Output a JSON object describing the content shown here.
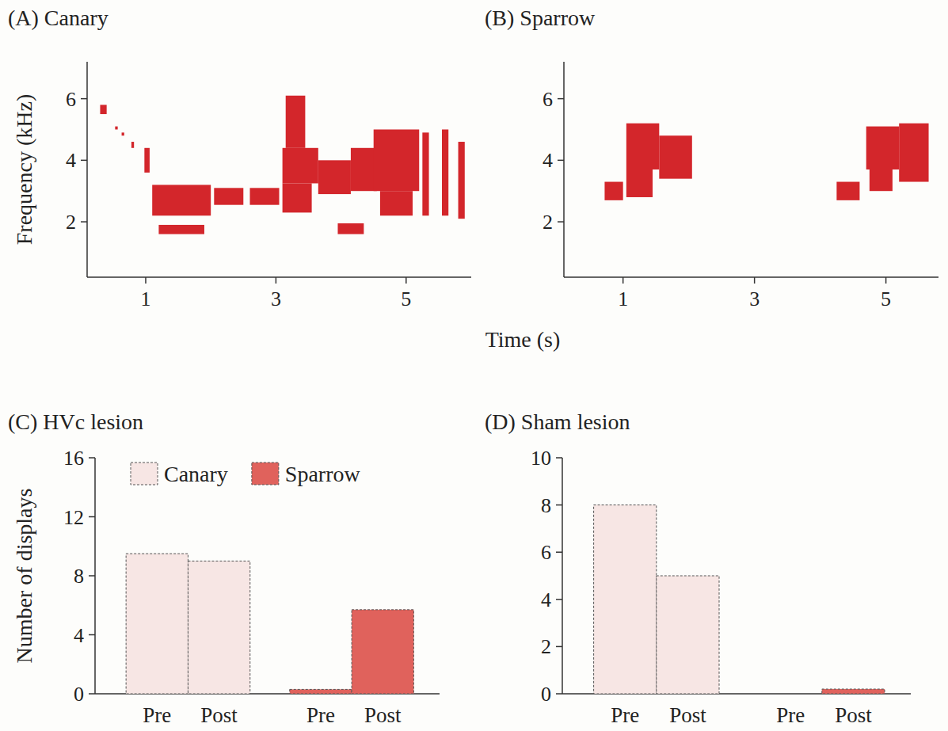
{
  "chart_data": [
    {
      "type": "spectrogram",
      "title": "(A) Canary",
      "x_label": "Time (s)",
      "y_label": "Frequency (kHz)",
      "xlim": [
        0.1,
        6
      ],
      "ylim": [
        0.2,
        7.2
      ],
      "xticks": [
        1,
        3,
        5
      ],
      "yticks": [
        2,
        4,
        6
      ],
      "color": "#d3262b",
      "segments": [
        {
          "t": [
            0.3,
            0.4
          ],
          "f": [
            5.5,
            5.8
          ]
        },
        {
          "t": [
            0.53,
            0.57
          ],
          "f": [
            5.0,
            5.1
          ]
        },
        {
          "t": [
            0.63,
            0.67
          ],
          "f": [
            4.8,
            4.9
          ]
        },
        {
          "t": [
            0.78,
            0.82
          ],
          "f": [
            4.4,
            4.6
          ]
        },
        {
          "t": [
            0.98,
            1.06
          ],
          "f": [
            3.6,
            4.4
          ]
        },
        {
          "t": [
            1.1,
            2.0
          ],
          "f": [
            2.2,
            3.2
          ]
        },
        {
          "t": [
            1.2,
            1.9
          ],
          "f": [
            1.6,
            1.9
          ]
        },
        {
          "t": [
            2.05,
            2.5
          ],
          "f": [
            2.55,
            3.1
          ]
        },
        {
          "t": [
            2.6,
            3.05
          ],
          "f": [
            2.55,
            3.1
          ]
        },
        {
          "t": [
            3.1,
            3.65
          ],
          "f": [
            3.25,
            4.4
          ]
        },
        {
          "t": [
            3.15,
            3.45
          ],
          "f": [
            4.4,
            6.1
          ]
        },
        {
          "t": [
            3.1,
            3.55
          ],
          "f": [
            2.3,
            3.25
          ]
        },
        {
          "t": [
            3.65,
            4.15
          ],
          "f": [
            2.9,
            4.0
          ]
        },
        {
          "t": [
            3.95,
            4.35
          ],
          "f": [
            1.6,
            1.95
          ]
        },
        {
          "t": [
            4.15,
            4.55
          ],
          "f": [
            3.0,
            4.4
          ]
        },
        {
          "t": [
            4.5,
            5.2
          ],
          "f": [
            3.0,
            5.0
          ]
        },
        {
          "t": [
            4.6,
            5.1
          ],
          "f": [
            2.2,
            3.0
          ]
        },
        {
          "t": [
            5.25,
            5.35
          ],
          "f": [
            2.2,
            4.9
          ]
        },
        {
          "t": [
            5.55,
            5.65
          ],
          "f": [
            2.2,
            5.0
          ]
        },
        {
          "t": [
            5.8,
            5.9
          ],
          "f": [
            2.1,
            4.6
          ]
        }
      ]
    },
    {
      "type": "spectrogram",
      "title": "(B) Sparrow",
      "xlim": [
        0.1,
        5.8
      ],
      "ylim": [
        0.2,
        7.2
      ],
      "xticks": [
        1,
        3,
        5
      ],
      "yticks": [
        2,
        4,
        6
      ],
      "color": "#d3262b",
      "segments": [
        {
          "t": [
            0.72,
            1.0
          ],
          "f": [
            2.7,
            3.3
          ]
        },
        {
          "t": [
            1.05,
            1.55
          ],
          "f": [
            3.7,
            5.2
          ]
        },
        {
          "t": [
            1.05,
            1.45
          ],
          "f": [
            2.8,
            3.7
          ]
        },
        {
          "t": [
            1.55,
            2.05
          ],
          "f": [
            3.4,
            4.8
          ]
        },
        {
          "t": [
            4.25,
            4.6
          ],
          "f": [
            2.7,
            3.3
          ]
        },
        {
          "t": [
            4.7,
            5.2
          ],
          "f": [
            3.7,
            5.1
          ]
        },
        {
          "t": [
            4.75,
            5.1
          ],
          "f": [
            3.0,
            3.7
          ]
        },
        {
          "t": [
            5.2,
            5.65
          ],
          "f": [
            3.3,
            5.2
          ]
        }
      ]
    },
    {
      "type": "bar",
      "title": "(C) HVc lesion",
      "y_label": "Number of displays",
      "categories": [
        "Pre",
        "Post",
        "Pre",
        "Post"
      ],
      "ylim": [
        0,
        16
      ],
      "yticks": [
        0,
        4,
        8,
        12,
        16
      ],
      "legend": "top",
      "series": [
        {
          "name": "Canary",
          "color": "#f7e6e4",
          "values": [
            9.5,
            9,
            null,
            null
          ]
        },
        {
          "name": "Sparrow",
          "color": "#e0625c",
          "values": [
            null,
            null,
            0.3,
            5.7
          ]
        }
      ]
    },
    {
      "type": "bar",
      "title": "(D) Sham lesion",
      "categories": [
        "Pre",
        "Post",
        "Pre",
        "Post"
      ],
      "ylim": [
        0,
        10
      ],
      "yticks": [
        0,
        2,
        4,
        6,
        8,
        10
      ],
      "series": [
        {
          "color": "#f7e6e4",
          "values": [
            8,
            5,
            null,
            null
          ]
        },
        {
          "color": "#e0625c",
          "values": [
            null,
            null,
            0,
            0.2
          ]
        }
      ]
    }
  ]
}
